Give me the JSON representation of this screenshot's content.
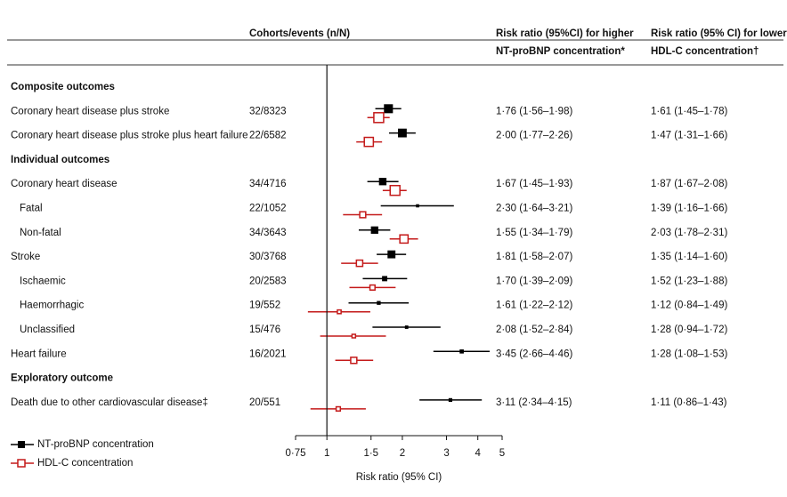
{
  "chart_data": {
    "type": "forest",
    "column_labels": [
      [
        "Cohorts/events (n/N)"
      ],
      [
        "Risk ratio (95%CI) for higher",
        "NT-proBNP concentration*"
      ],
      [
        "Risk ratio (95% CI) for lower",
        "HDL-C concentration†"
      ]
    ],
    "xlabel": "Risk ratio (95% CI)",
    "xscale": "log",
    "xlim": [
      0.75,
      5
    ],
    "xticks": [
      {
        "value": 0.75,
        "label": "0·75"
      },
      1,
      {
        "value": 1.5,
        "label": "1·5"
      },
      2,
      3,
      4,
      5
    ],
    "reference_line": 1,
    "legend": "lower left",
    "series": [
      {
        "name": "NT-proBNP concentration",
        "color": "#000000",
        "marker": "filled-square"
      },
      {
        "name": "HDL-C concentration",
        "color": "#c41a1a",
        "marker": "open-square"
      }
    ],
    "groups": [
      {
        "title": "Composite outcomes",
        "rows": [
          {
            "label": "Coronary heart disease plus stroke",
            "cohorts": "32/8323",
            "estimates": [
              {
                "value": 1.76,
                "lower": 1.56,
                "upper": 1.98,
                "value_label": "1·76 (1·56–1·98)"
              },
              {
                "value": 1.61,
                "lower": 1.45,
                "upper": 1.78,
                "value_label": "1·61 (1·45–1·78)"
              }
            ]
          },
          {
            "label": "Coronary heart disease plus stroke plus heart failure",
            "cohorts": "22/6582",
            "estimates": [
              {
                "value": 2.0,
                "lower": 1.77,
                "upper": 2.26,
                "value_label": "2·00 (1·77–2·26)"
              },
              {
                "value": 1.47,
                "lower": 1.31,
                "upper": 1.66,
                "value_label": "1·47 (1·31–1·66)"
              }
            ]
          }
        ]
      },
      {
        "title": "Individual outcomes",
        "rows": [
          {
            "label": "Coronary heart disease",
            "cohorts": "34/4716",
            "estimates": [
              {
                "value": 1.67,
                "lower": 1.45,
                "upper": 1.93,
                "value_label": "1·67 (1·45–1·93)"
              },
              {
                "value": 1.87,
                "lower": 1.67,
                "upper": 2.08,
                "value_label": "1·87 (1·67–2·08)"
              }
            ],
            "subrows": [
              {
                "label": "Fatal",
                "cohorts": "22/1052",
                "estimates": [
                  {
                    "value": 2.3,
                    "lower": 1.64,
                    "upper": 3.21,
                    "value_label": "2·30 (1·64–3·21)"
                  },
                  {
                    "value": 1.39,
                    "lower": 1.16,
                    "upper": 1.66,
                    "value_label": "1·39 (1·16–1·66)"
                  }
                ]
              },
              {
                "label": "Non-fatal",
                "cohorts": "34/3643",
                "estimates": [
                  {
                    "value": 1.55,
                    "lower": 1.34,
                    "upper": 1.79,
                    "value_label": "1·55 (1·34–1·79)"
                  },
                  {
                    "value": 2.03,
                    "lower": 1.78,
                    "upper": 2.31,
                    "value_label": "2·03 (1·78–2·31)"
                  }
                ]
              }
            ]
          },
          {
            "label": "Stroke",
            "cohorts": "30/3768",
            "estimates": [
              {
                "value": 1.81,
                "lower": 1.58,
                "upper": 2.07,
                "value_label": "1·81 (1·58–2·07)"
              },
              {
                "value": 1.35,
                "lower": 1.14,
                "upper": 1.6,
                "value_label": "1·35 (1·14–1·60)"
              }
            ],
            "subrows": [
              {
                "label": "Ischaemic",
                "cohorts": "20/2583",
                "estimates": [
                  {
                    "value": 1.7,
                    "lower": 1.39,
                    "upper": 2.09,
                    "value_label": "1·70 (1·39–2·09)"
                  },
                  {
                    "value": 1.52,
                    "lower": 1.23,
                    "upper": 1.88,
                    "value_label": "1·52 (1·23–1·88)"
                  }
                ]
              },
              {
                "label": "Haemorrhagic",
                "cohorts": "19/552",
                "estimates": [
                  {
                    "value": 1.61,
                    "lower": 1.22,
                    "upper": 2.12,
                    "value_label": "1·61 (1·22–2·12)"
                  },
                  {
                    "value": 1.12,
                    "lower": 0.84,
                    "upper": 1.49,
                    "value_label": "1·12 (0·84–1·49)"
                  }
                ]
              },
              {
                "label": "Unclassified",
                "cohorts": "15/476",
                "estimates": [
                  {
                    "value": 2.08,
                    "lower": 1.52,
                    "upper": 2.84,
                    "value_label": "2·08 (1·52–2·84)"
                  },
                  {
                    "value": 1.28,
                    "lower": 0.94,
                    "upper": 1.72,
                    "value_label": "1·28 (0·94–1·72)"
                  }
                ]
              }
            ]
          },
          {
            "label": "Heart failure",
            "cohorts": "16/2021",
            "estimates": [
              {
                "value": 3.45,
                "lower": 2.66,
                "upper": 4.46,
                "value_label": "3·45 (2·66–4·46)"
              },
              {
                "value": 1.28,
                "lower": 1.08,
                "upper": 1.53,
                "value_label": "1·28 (1·08–1·53)"
              }
            ]
          }
        ]
      },
      {
        "title": "Exploratory outcome",
        "rows": [
          {
            "label": "Death due to other cardiovascular disease‡",
            "cohorts": "20/551",
            "estimates": [
              {
                "value": 3.11,
                "lower": 2.34,
                "upper": 4.15,
                "value_label": "3·11 (2·34–4·15)"
              },
              {
                "value": 1.11,
                "lower": 0.86,
                "upper": 1.43,
                "value_label": "1·11 (0·86–1·43)"
              }
            ]
          }
        ]
      }
    ]
  }
}
